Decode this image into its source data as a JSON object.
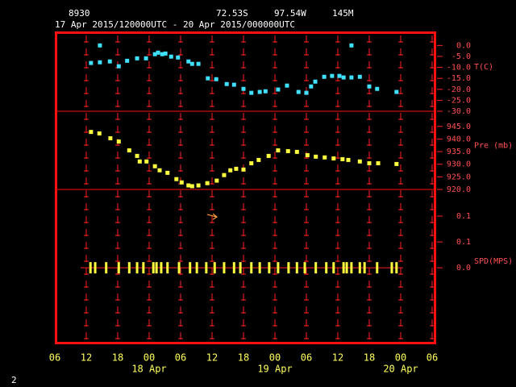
{
  "header": {
    "station": "8930",
    "latitude": "72.53S",
    "longitude": "97.54W",
    "elevation": "145M",
    "period": "17 Apr 2015/120000UTC - 20 Apr 2015/000000UTC"
  },
  "page_number": "2",
  "chart_data": {
    "type": "meteogram",
    "xlim": [
      6,
      78
    ],
    "xticks": [
      {
        "value": 6,
        "label": "06"
      },
      {
        "value": 12,
        "label": "12"
      },
      {
        "value": 18,
        "label": "18"
      },
      {
        "value": 24,
        "label": "00"
      },
      {
        "value": 30,
        "label": "06"
      },
      {
        "value": 36,
        "label": "12"
      },
      {
        "value": 42,
        "label": "18"
      },
      {
        "value": 48,
        "label": "00"
      },
      {
        "value": 54,
        "label": "06"
      },
      {
        "value": 60,
        "label": "12"
      },
      {
        "value": 66,
        "label": "18"
      },
      {
        "value": 72,
        "label": "00"
      },
      {
        "value": 78,
        "label": "06"
      }
    ],
    "date_labels": [
      {
        "value": 24,
        "label": "18 Apr"
      },
      {
        "value": 48,
        "label": "19 Apr"
      },
      {
        "value": 72,
        "label": "20 Apr"
      }
    ],
    "grid": true,
    "panels": [
      {
        "type": "scatter",
        "ylabel": "T(C)",
        "ylim": [
          -30,
          6
        ],
        "yticks": [
          {
            "value": 0,
            "label": "0.0"
          },
          {
            "value": -5,
            "label": "-5.0"
          },
          {
            "value": -10,
            "label": "-10.0"
          },
          {
            "value": -15,
            "label": "-15.0"
          },
          {
            "value": -20,
            "label": "-20.0"
          },
          {
            "value": -25,
            "label": "-25.0"
          },
          {
            "value": -30,
            "label": "-30.0"
          }
        ],
        "series": [
          {
            "color": "#40e0ff",
            "marker": "square",
            "x": [
              12.9,
              14.6,
              14.6,
              16.5,
              18.2,
              19.8,
              21.7,
              23.4,
              25.1,
              25.7,
              26.5,
              27.1,
              28.2,
              29.5,
              31.5,
              32.2,
              33.4,
              35.2,
              36.8,
              38.8,
              40.2,
              42.0,
              43.5,
              45.1,
              46.2,
              48.6,
              50.3,
              52.5,
              54.0,
              54.9,
              55.7,
              57.4,
              58.9,
              60.3,
              61.1,
              62.6,
              62.6,
              64.2,
              66.0,
              67.5,
              71.2
            ],
            "values": [
              -8.0,
              0,
              -7.7,
              -7.3,
              -9.5,
              -7.0,
              -5.9,
              -5.9,
              -4.0,
              -3.3,
              -4.0,
              -3.7,
              -5.1,
              -5.5,
              -7.3,
              -8.4,
              -8.4,
              -15.0,
              -15.4,
              -17.6,
              -17.9,
              -19.8,
              -21.6,
              -21.2,
              -20.9,
              -20.1,
              -18.3,
              -21.2,
              -21.6,
              -18.7,
              -16.5,
              -14.3,
              -13.9,
              -13.9,
              -14.6,
              0,
              -14.6,
              -14.3,
              -18.7,
              -19.8,
              -21.2
            ]
          }
        ]
      },
      {
        "type": "scatter",
        "ylabel": "Pre (mb)",
        "ylim": [
          920,
          951
        ],
        "yticks": [
          {
            "value": 945,
            "label": "945.0"
          },
          {
            "value": 940,
            "label": "940.0"
          },
          {
            "value": 935,
            "label": "935.0"
          },
          {
            "value": 930,
            "label": "930.0"
          },
          {
            "value": 925,
            "label": "925.0"
          },
          {
            "value": 920,
            "label": "920.0"
          }
        ],
        "series": [
          {
            "color": "#ffff40",
            "marker": "square",
            "x": [
              12.9,
              14.5,
              16.6,
              18.2,
              20.2,
              21.7,
              22.2,
              23.5,
              25.1,
              26.0,
              27.5,
              29.2,
              30.2,
              31.5,
              32.2,
              33.4,
              35.1,
              36.9,
              38.3,
              39.5,
              40.6,
              42.0,
              43.5,
              44.9,
              46.8,
              48.6,
              50.5,
              52.2,
              54.2,
              55.8,
              57.5,
              59.2,
              60.9,
              62.0,
              64.2,
              66.0,
              67.7,
              71.2
            ],
            "values": [
              942.8,
              942.2,
              940.3,
              939.0,
              935.5,
              933.3,
              931.1,
              931.1,
              929.2,
              927.6,
              926.6,
              924.1,
              922.8,
              921.6,
              921.3,
              921.6,
              922.5,
              923.5,
              925.7,
              927.6,
              928.2,
              927.9,
              930.4,
              931.7,
              933.3,
              935.5,
              935.2,
              934.9,
              933.6,
              933.0,
              932.7,
              932.3,
              932.0,
              931.7,
              931.1,
              930.4,
              930.4,
              930.1
            ]
          }
        ]
      },
      {
        "type": "scatter",
        "ylabel": "SPD(MPS)",
        "ylim": [
          -0.174,
          0.182
        ],
        "yticks": [
          {
            "value": 0.12,
            "label": "0.1"
          },
          {
            "value": 0.06,
            "label": "0.1"
          },
          {
            "value": 0,
            "label": "0.0"
          }
        ],
        "series": [
          {
            "color": "#ffff40",
            "marker": "tick",
            "x": [
              12.8,
              13.7,
              15.8,
              18.2,
              20.2,
              21.7,
              22.9,
              24.8,
              25.4,
              26.3,
              27.5,
              29.7,
              31.8,
              33.1,
              34.9,
              36.5,
              38.3,
              40.2,
              41.4,
              43.5,
              45.1,
              46.9,
              48.6,
              50.6,
              52.2,
              53.7,
              55.8,
              57.8,
              59.2,
              61.1,
              61.7,
              62.6,
              64.2,
              65.1,
              67.5,
              70.3,
              71.2
            ],
            "values": [
              0,
              0,
              0,
              0,
              0,
              0,
              0,
              0,
              0,
              0,
              0,
              0,
              0,
              0,
              0,
              0,
              0,
              0,
              0,
              0,
              0,
              0,
              0,
              0,
              0,
              0,
              0,
              0,
              0,
              0,
              0,
              0,
              0,
              0,
              0,
              0,
              0
            ]
          },
          {
            "color": "#ffa040",
            "marker": "arrow",
            "x": [
              36.0
            ],
            "values": [
              0.12
            ]
          }
        ]
      }
    ]
  }
}
